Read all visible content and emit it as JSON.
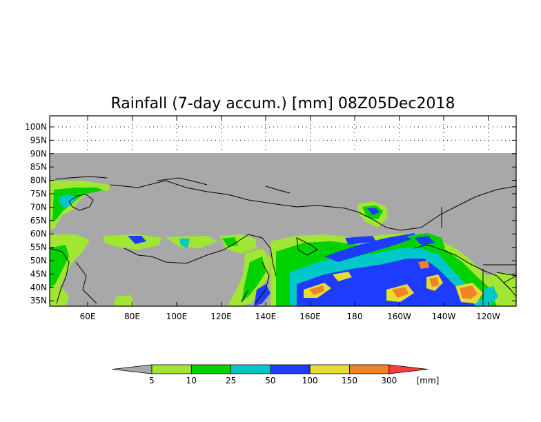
{
  "title": "Rainfall (7-day accum.) [mm] 08Z05Dec2018",
  "map": {
    "lat_ticks": [
      "100N",
      "95N",
      "90N",
      "85N",
      "80N",
      "75N",
      "70N",
      "65N",
      "60N",
      "55N",
      "50N",
      "45N",
      "40N",
      "35N"
    ],
    "lon_ticks": [
      "60E",
      "80E",
      "100E",
      "120E",
      "140E",
      "160E",
      "180",
      "160W",
      "140W",
      "120W"
    ],
    "no_data_color": "#a8a8a8",
    "background_color": "#ffffff"
  },
  "colorbar": {
    "unit": "[mm]",
    "levels": [
      "5",
      "10",
      "25",
      "50",
      "100",
      "150",
      "300"
    ],
    "colors": [
      "#a0e632",
      "#00d200",
      "#00c8c8",
      "#1e3cff",
      "#e6dc32",
      "#f08228",
      "#fa3c3c"
    ],
    "below_color": "#a8a8a8"
  }
}
